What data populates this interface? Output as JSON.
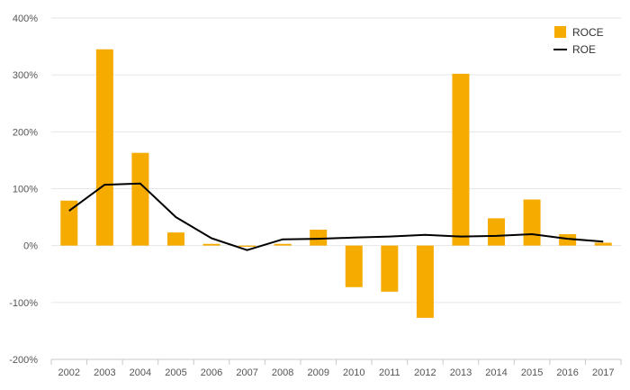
{
  "chart_data": {
    "type": "bar",
    "categories": [
      "2002",
      "2003",
      "2004",
      "2005",
      "2006",
      "2007",
      "2008",
      "2009",
      "2010",
      "2011",
      "2012",
      "2013",
      "2014",
      "2015",
      "2016",
      "2017"
    ],
    "series": [
      {
        "name": "ROCE",
        "type": "bar",
        "color": "#f5ab00",
        "values": [
          79,
          345,
          163,
          23,
          3,
          -2,
          3,
          28,
          -73,
          -81,
          -127,
          302,
          48,
          81,
          20,
          5
        ]
      },
      {
        "name": "ROE",
        "type": "line",
        "color": "#000000",
        "values": [
          61,
          107,
          109,
          50,
          13,
          -8,
          11,
          12,
          14,
          16,
          19,
          16,
          17,
          20,
          12,
          7
        ]
      }
    ],
    "y_ticks": [
      "400%",
      "300%",
      "200%",
      "100%",
      "0%",
      "-100%",
      "-200%"
    ],
    "ylim": [
      -200,
      400
    ],
    "y_unit": "%",
    "grid": true,
    "legend_position": "top-right"
  }
}
